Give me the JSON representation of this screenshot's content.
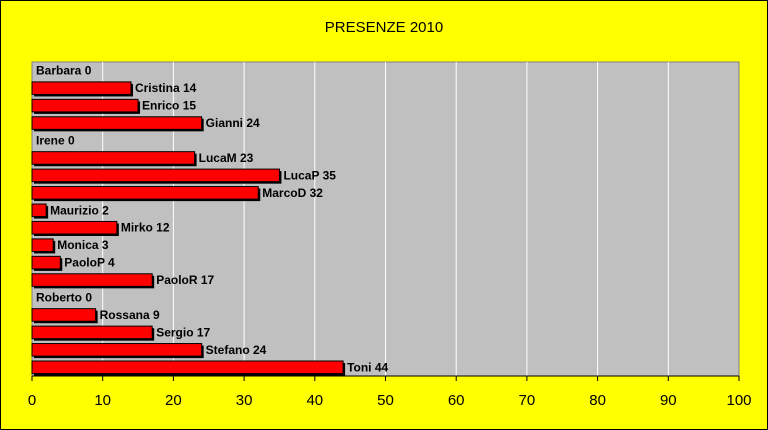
{
  "chart_data": {
    "type": "bar",
    "orientation": "horizontal",
    "title": "PRESENZE 2010",
    "xlabel": "",
    "ylabel": "",
    "xlim": [
      0,
      100
    ],
    "xticks": [
      0,
      10,
      20,
      30,
      40,
      50,
      60,
      70,
      80,
      90,
      100
    ],
    "grid": true,
    "legend": "none",
    "categories": [
      "Barbara",
      "Cristina",
      "Enrico",
      "Gianni",
      "Irene",
      "LucaM",
      "LucaP",
      "MarcoD",
      "Maurizio",
      "Mirko",
      "Monica",
      "PaoloP",
      "PaoloR",
      "Roberto",
      "Rossana",
      "Sergio",
      "Stefano",
      "Toni"
    ],
    "values": [
      0,
      14,
      15,
      24,
      0,
      23,
      35,
      32,
      2,
      12,
      3,
      4,
      17,
      0,
      9,
      17,
      24,
      44
    ],
    "colors": {
      "background": "#ffff00",
      "plot_area": "#c0c0c0",
      "bar": "#ff0000",
      "bar_shadow": "#000000",
      "grid": "#ffffff"
    }
  }
}
